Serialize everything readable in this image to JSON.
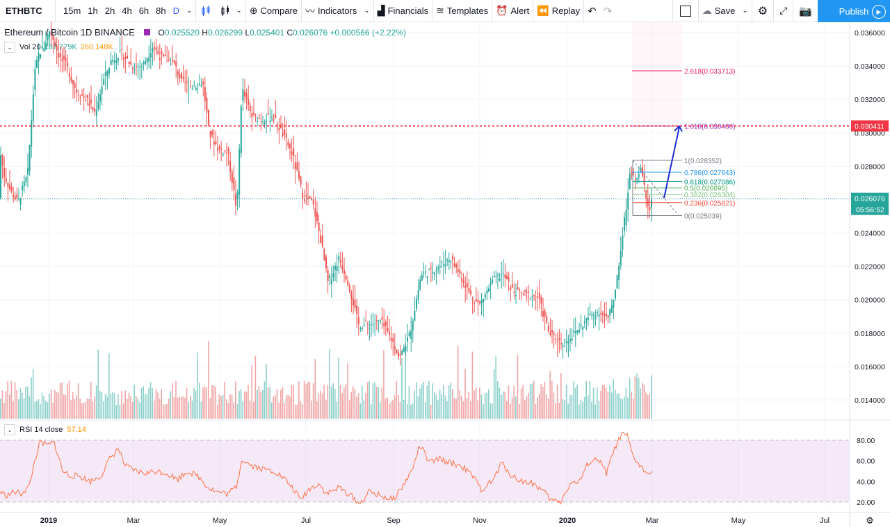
{
  "toolbar": {
    "symbol": "ETHBTC",
    "intervals": [
      "15m",
      "1h",
      "2h",
      "4h",
      "6h",
      "8h",
      "D"
    ],
    "active_interval": "D",
    "compare": "Compare",
    "indicators": "Indicators",
    "financials": "Financials",
    "templates": "Templates",
    "alert": "Alert",
    "replay": "Replay",
    "save": "Save",
    "publish": "Publish"
  },
  "legend": {
    "title": "Ethereum / Bitcoin  1D  BINANCE",
    "o_label": "O",
    "o": "0.025520",
    "h_label": "H",
    "h": "0.026299",
    "l_label": "L",
    "l": "0.025401",
    "c_label": "C",
    "c": "0.026076",
    "change": "+0.000566 (+2.22%)"
  },
  "volume_legend": {
    "name": "Vol 20",
    "v1": "137.779K",
    "v2": "260.148K"
  },
  "rsi_legend": {
    "name": "RSI 14 close",
    "value": "57.14"
  },
  "price_axis": {
    "ticks": [
      "0.036000",
      "0.034000",
      "0.032000",
      "0.030000",
      "0.028000",
      "0.026000",
      "0.024000",
      "0.022000",
      "0.020000",
      "0.018000",
      "0.016000",
      "0.014000"
    ],
    "tick_values": [
      0.036,
      0.034,
      0.032,
      0.03,
      0.028,
      0.026,
      0.024,
      0.022,
      0.02,
      0.018,
      0.016,
      0.014
    ],
    "alert_label": "0.030411",
    "alert_value": 0.030411,
    "last_label": "0.026076",
    "last_value": 0.026076,
    "countdown": "05:56:52"
  },
  "rsi_axis": {
    "ticks": [
      "80.00",
      "60.00",
      "40.00",
      "20.00"
    ],
    "tick_values": [
      80,
      60,
      40,
      20
    ]
  },
  "time_axis": [
    "2019",
    "Mar",
    "May",
    "Jul",
    "Sep",
    "Nov",
    "2020",
    "Mar",
    "May",
    "Jul"
  ],
  "fib": [
    {
      "label": "2.618(0.033713)",
      "value": 0.033713,
      "color": "#e91e63"
    },
    {
      "label": "1.618(0.030400)",
      "value": 0.0304,
      "color": "#9c27b0"
    },
    {
      "label": "1(0.028352)",
      "value": 0.028352,
      "color": "#787b86"
    },
    {
      "label": "0.786(0.027643)",
      "value": 0.027643,
      "color": "#2196f3"
    },
    {
      "label": "0.618(0.027086)",
      "value": 0.027086,
      "color": "#009688"
    },
    {
      "label": "0.5(0.026695)",
      "value": 0.026695,
      "color": "#4caf50"
    },
    {
      "label": "0.382(0.026304)",
      "value": 0.026304,
      "color": "#81c784"
    },
    {
      "label": "0.236(0.025821)",
      "value": 0.025821,
      "color": "#f44336"
    },
    {
      "label": "0(0.025039)",
      "value": 0.025039,
      "color": "#787b86"
    }
  ],
  "chart_data": {
    "type": "candlestick",
    "title": "Ethereum / Bitcoin  1D  BINANCE",
    "ylim": [
      0.0125,
      0.0365
    ],
    "x_labels": [
      "2019",
      "Mar",
      "May",
      "Jul",
      "Sep",
      "Nov",
      "2020",
      "Mar",
      "May",
      "Jul"
    ],
    "close_path": [
      [
        0,
        0.029
      ],
      [
        6,
        0.0275
      ],
      [
        16,
        0.0265
      ],
      [
        26,
        0.0258
      ],
      [
        40,
        0.0275
      ],
      [
        50,
        0.0335
      ],
      [
        56,
        0.0347
      ],
      [
        64,
        0.0352
      ],
      [
        72,
        0.0362
      ],
      [
        86,
        0.0345
      ],
      [
        96,
        0.034
      ],
      [
        110,
        0.0325
      ],
      [
        125,
        0.032
      ],
      [
        137,
        0.0312
      ],
      [
        148,
        0.033
      ],
      [
        160,
        0.0343
      ],
      [
        175,
        0.0348
      ],
      [
        190,
        0.034
      ],
      [
        205,
        0.034
      ],
      [
        220,
        0.0352
      ],
      [
        232,
        0.0345
      ],
      [
        250,
        0.0342
      ],
      [
        262,
        0.033
      ],
      [
        276,
        0.0328
      ],
      [
        292,
        0.033
      ],
      [
        301,
        0.03
      ],
      [
        315,
        0.029
      ],
      [
        328,
        0.0288
      ],
      [
        341,
        0.0253
      ],
      [
        348,
        0.0327
      ],
      [
        362,
        0.031
      ],
      [
        378,
        0.0308
      ],
      [
        392,
        0.031
      ],
      [
        406,
        0.03
      ],
      [
        420,
        0.0288
      ],
      [
        436,
        0.0262
      ],
      [
        450,
        0.0258
      ],
      [
        462,
        0.0235
      ],
      [
        472,
        0.021
      ],
      [
        488,
        0.0225
      ],
      [
        500,
        0.0212
      ],
      [
        516,
        0.0185
      ],
      [
        532,
        0.0185
      ],
      [
        548,
        0.0187
      ],
      [
        565,
        0.0175
      ],
      [
        575,
        0.0165
      ],
      [
        590,
        0.018
      ],
      [
        606,
        0.0215
      ],
      [
        620,
        0.0217
      ],
      [
        632,
        0.022
      ],
      [
        648,
        0.0225
      ],
      [
        662,
        0.0215
      ],
      [
        678,
        0.0202
      ],
      [
        690,
        0.0197
      ],
      [
        710,
        0.0212
      ],
      [
        724,
        0.0215
      ],
      [
        738,
        0.0205
      ],
      [
        756,
        0.0203
      ],
      [
        774,
        0.0202
      ],
      [
        790,
        0.018
      ],
      [
        808,
        0.0174
      ],
      [
        822,
        0.0178
      ],
      [
        838,
        0.0185
      ],
      [
        848,
        0.019
      ],
      [
        862,
        0.0193
      ],
      [
        875,
        0.0188
      ],
      [
        885,
        0.0205
      ],
      [
        893,
        0.023
      ],
      [
        900,
        0.0253
      ],
      [
        906,
        0.0275
      ],
      [
        915,
        0.0273
      ],
      [
        922,
        0.0278
      ],
      [
        928,
        0.0265
      ],
      [
        934,
        0.0254
      ],
      [
        938,
        0.0261
      ]
    ],
    "rsi_path": [
      [
        0,
        0.3
      ],
      [
        10,
        0.26
      ],
      [
        20,
        0.3
      ],
      [
        30,
        0.28
      ],
      [
        42,
        0.35
      ],
      [
        50,
        0.6
      ],
      [
        58,
        0.78
      ],
      [
        68,
        0.75
      ],
      [
        78,
        0.78
      ],
      [
        90,
        0.5
      ],
      [
        100,
        0.46
      ],
      [
        115,
        0.45
      ],
      [
        130,
        0.4
      ],
      [
        145,
        0.45
      ],
      [
        158,
        0.62
      ],
      [
        170,
        0.72
      ],
      [
        180,
        0.55
      ],
      [
        195,
        0.5
      ],
      [
        210,
        0.48
      ],
      [
        225,
        0.5
      ],
      [
        240,
        0.48
      ],
      [
        255,
        0.42
      ],
      [
        270,
        0.5
      ],
      [
        285,
        0.45
      ],
      [
        300,
        0.34
      ],
      [
        312,
        0.3
      ],
      [
        328,
        0.28
      ],
      [
        340,
        0.35
      ],
      [
        348,
        0.62
      ],
      [
        360,
        0.56
      ],
      [
        378,
        0.52
      ],
      [
        395,
        0.5
      ],
      [
        410,
        0.42
      ],
      [
        425,
        0.3
      ],
      [
        432,
        0.22
      ],
      [
        444,
        0.32
      ],
      [
        458,
        0.38
      ],
      [
        470,
        0.28
      ],
      [
        488,
        0.34
      ],
      [
        505,
        0.26
      ],
      [
        518,
        0.18
      ],
      [
        530,
        0.3
      ],
      [
        548,
        0.26
      ],
      [
        565,
        0.22
      ],
      [
        578,
        0.34
      ],
      [
        592,
        0.5
      ],
      [
        604,
        0.75
      ],
      [
        618,
        0.58
      ],
      [
        632,
        0.62
      ],
      [
        648,
        0.58
      ],
      [
        664,
        0.55
      ],
      [
        680,
        0.45
      ],
      [
        692,
        0.32
      ],
      [
        708,
        0.4
      ],
      [
        722,
        0.58
      ],
      [
        736,
        0.45
      ],
      [
        752,
        0.4
      ],
      [
        768,
        0.38
      ],
      [
        782,
        0.3
      ],
      [
        792,
        0.22
      ],
      [
        806,
        0.2
      ],
      [
        820,
        0.38
      ],
      [
        834,
        0.4
      ],
      [
        846,
        0.58
      ],
      [
        860,
        0.62
      ],
      [
        872,
        0.48
      ],
      [
        884,
        0.72
      ],
      [
        895,
        0.86
      ],
      [
        902,
        0.84
      ],
      [
        910,
        0.65
      ],
      [
        920,
        0.55
      ],
      [
        930,
        0.48
      ],
      [
        938,
        0.52
      ]
    ],
    "series": [
      {
        "name": "ETHBTC close"
      },
      {
        "name": "Vol 20"
      },
      {
        "name": "RSI 14 close",
        "last": 57.14
      }
    ]
  }
}
